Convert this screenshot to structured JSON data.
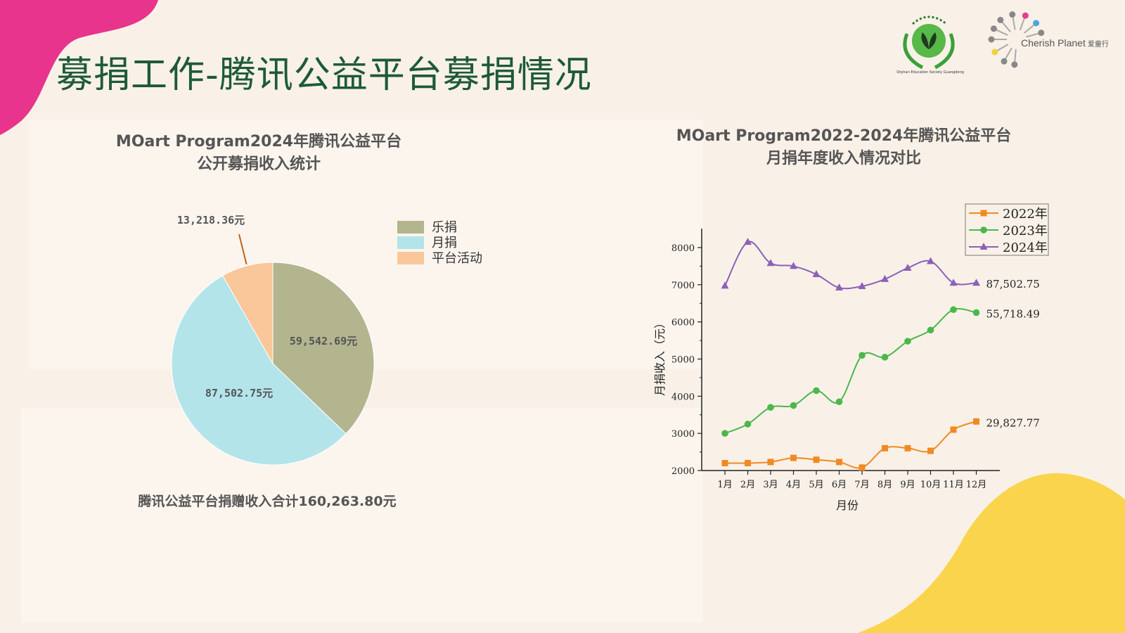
{
  "slide": {
    "title": "募捐工作-腾讯公益平台募捐情况",
    "total_note": "腾讯公益平台捐赠收入合计160,263.80元",
    "logos": {
      "left_org_text": "Orphan Education Society Guangdong",
      "right_org_name": "Cherish Planet",
      "right_org_cn": "爱童行"
    },
    "colors": {
      "title": "#1e5a36",
      "accent_pink": "#e8348c",
      "accent_yellow": "#fbd44e"
    }
  },
  "chart_data": [
    {
      "type": "pie",
      "title_lines": [
        "MOart Program2024年腾讯公益平台",
        "公开募捐收入统计"
      ],
      "legend_position": "top-right",
      "slices": [
        {
          "name": "乐捐",
          "value": 59542.69,
          "label": "59,542.69元",
          "color": "#b2b58e"
        },
        {
          "name": "月捐",
          "value": 87502.75,
          "label": "87,502.75元",
          "color": "#b3e4ea"
        },
        {
          "name": "平台活动",
          "value": 13218.36,
          "label": "13,218.36元",
          "color": "#f9c79a"
        }
      ]
    },
    {
      "type": "line",
      "title_lines": [
        "MOart Program2022-2024年腾讯公益平台",
        "月捐年度收入情况对比"
      ],
      "xlabel": "月份",
      "ylabel": "月捐收入（元）",
      "ylim": [
        2000,
        8200
      ],
      "yticks": [
        2000,
        3000,
        4000,
        5000,
        6000,
        7000,
        8000
      ],
      "categories": [
        "1月",
        "2月",
        "3月",
        "4月",
        "5月",
        "6月",
        "7月",
        "8月",
        "9月",
        "10月",
        "11月",
        "12月"
      ],
      "legend_position": "top-right",
      "series": [
        {
          "name": "2022年",
          "color": "#f08a24",
          "marker": "square",
          "values": [
            2200,
            2200,
            2230,
            2340,
            2290,
            2230,
            2080,
            2600,
            2600,
            2530,
            3100,
            3320
          ],
          "end_label": "29,827.77"
        },
        {
          "name": "2023年",
          "color": "#4ab84a",
          "marker": "circle",
          "values": [
            3000,
            3250,
            3700,
            3750,
            4150,
            3850,
            5100,
            5050,
            5480,
            5780,
            6330,
            6250
          ],
          "end_label": "55,718.49"
        },
        {
          "name": "2024年",
          "color": "#8c61b8",
          "marker": "triangle",
          "values": [
            6970,
            8150,
            7580,
            7500,
            7280,
            6920,
            6960,
            7150,
            7450,
            7630,
            7050,
            7050
          ],
          "end_label": "87,502.75"
        }
      ]
    }
  ]
}
